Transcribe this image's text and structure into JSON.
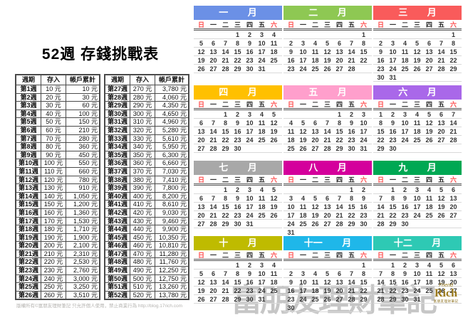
{
  "title": "52週 存錢挑戰表",
  "table": {
    "headers": [
      "週期",
      "存入",
      "帳戶累計"
    ],
    "left_rows": [
      [
        "第1週",
        "10 元",
        "10 元"
      ],
      [
        "第2週",
        "20 元",
        "30 元"
      ],
      [
        "第3週",
        "30 元",
        "60 元"
      ],
      [
        "第4週",
        "40 元",
        "100 元"
      ],
      [
        "第5週",
        "50 元",
        "150 元"
      ],
      [
        "第6週",
        "60 元",
        "210 元"
      ],
      [
        "第7週",
        "70 元",
        "280 元"
      ],
      [
        "第8週",
        "80 元",
        "360 元"
      ],
      [
        "第9週",
        "90 元",
        "450 元"
      ],
      [
        "第10週",
        "100 元",
        "550 元"
      ],
      [
        "第11週",
        "110 元",
        "660 元"
      ],
      [
        "第12週",
        "120 元",
        "780 元"
      ],
      [
        "第13週",
        "130 元",
        "910 元"
      ],
      [
        "第14週",
        "140 元",
        "1,050 元"
      ],
      [
        "第15週",
        "150 元",
        "1,200 元"
      ],
      [
        "第16週",
        "160 元",
        "1,360 元"
      ],
      [
        "第17週",
        "170 元",
        "1,530 元"
      ],
      [
        "第18週",
        "180 元",
        "1,710 元"
      ],
      [
        "第19週",
        "190 元",
        "1,900 元"
      ],
      [
        "第20週",
        "200 元",
        "2,100 元"
      ],
      [
        "第21週",
        "210 元",
        "2,310 元"
      ],
      [
        "第22週",
        "220 元",
        "2,530 元"
      ],
      [
        "第23週",
        "230 元",
        "2,760 元"
      ],
      [
        "第24週",
        "240 元",
        "3,000 元"
      ],
      [
        "第25週",
        "250 元",
        "3,250 元"
      ],
      [
        "第26週",
        "260 元",
        "3,510 元"
      ]
    ],
    "right_rows": [
      [
        "第27週",
        "270 元",
        "3,780 元"
      ],
      [
        "第28週",
        "280 元",
        "4,060 元"
      ],
      [
        "第29週",
        "290 元",
        "4,350 元"
      ],
      [
        "第30週",
        "300 元",
        "4,650 元"
      ],
      [
        "第31週",
        "310 元",
        "4,960 元"
      ],
      [
        "第32週",
        "320 元",
        "5,280 元"
      ],
      [
        "第33週",
        "330 元",
        "5,610 元"
      ],
      [
        "第34週",
        "340 元",
        "5,950 元"
      ],
      [
        "第35週",
        "350 元",
        "6,300 元"
      ],
      [
        "第36週",
        "360 元",
        "6,660 元"
      ],
      [
        "第37週",
        "370 元",
        "7,030 元"
      ],
      [
        "第38週",
        "380 元",
        "7,410 元"
      ],
      [
        "第39週",
        "390 元",
        "7,800 元"
      ],
      [
        "第40週",
        "400 元",
        "8,200 元"
      ],
      [
        "第41週",
        "410 元",
        "8,610 元"
      ],
      [
        "第42週",
        "420 元",
        "9,030 元"
      ],
      [
        "第43週",
        "430 元",
        "9,460 元"
      ],
      [
        "第44週",
        "440 元",
        "9,900 元"
      ],
      [
        "第45週",
        "450 元",
        "10,350 元"
      ],
      [
        "第46週",
        "460 元",
        "10,810 元"
      ],
      [
        "第47週",
        "470 元",
        "11,280 元"
      ],
      [
        "第48週",
        "480 元",
        "11,760 元"
      ],
      [
        "第49週",
        "490 元",
        "12,250 元"
      ],
      [
        "第50週",
        "500 元",
        "12,750 元"
      ],
      [
        "第51週",
        "510 元",
        "13,260 元"
      ],
      [
        "第52週",
        "520 元",
        "13,780 元"
      ]
    ]
  },
  "footer": "版權所有©富朋友理財筆記 只允許個人使用，禁止商業行為 http://blog.17rich.com",
  "watermark": "富朋友理財筆記",
  "logo": {
    "friend": "Friend",
    "rich": "Rich",
    "sub": "富朋友理財筆記"
  },
  "calendar": {
    "weekdays": [
      "日",
      "一",
      "二",
      "三",
      "四",
      "五",
      "六"
    ],
    "weekend_color": "#FF4C4C",
    "months": [
      {
        "label": "一 月",
        "color": "#6B90E6",
        "weeks": [
          [
            "",
            "",
            "",
            "1",
            "2",
            "3",
            "4"
          ],
          [
            "5",
            "6",
            "7",
            "8",
            "9",
            "10",
            "11"
          ],
          [
            "12",
            "13",
            "14",
            "15",
            "16",
            "17",
            "18"
          ],
          [
            "19",
            "20",
            "21",
            "22",
            "23",
            "24",
            "25"
          ],
          [
            "26",
            "27",
            "28",
            "29",
            "30",
            "31",
            ""
          ]
        ]
      },
      {
        "label": "二 月",
        "color": "#8EC853",
        "weeks": [
          [
            "",
            "",
            "",
            "",
            "",
            "",
            "1"
          ],
          [
            "2",
            "3",
            "4",
            "5",
            "6",
            "7",
            "8"
          ],
          [
            "9",
            "10",
            "11",
            "12",
            "13",
            "14",
            "15"
          ],
          [
            "16",
            "17",
            "18",
            "19",
            "20",
            "21",
            "22"
          ],
          [
            "23",
            "24",
            "25",
            "26",
            "27",
            "28",
            ""
          ]
        ]
      },
      {
        "label": "三 月",
        "color": "#F95B5B",
        "weeks": [
          [
            "",
            "",
            "",
            "",
            "",
            "",
            "1"
          ],
          [
            "2",
            "3",
            "4",
            "5",
            "6",
            "7",
            "8"
          ],
          [
            "9",
            "10",
            "11",
            "12",
            "13",
            "14",
            "15"
          ],
          [
            "16",
            "17",
            "18",
            "19",
            "20",
            "21",
            "22"
          ],
          [
            "23",
            "24",
            "25",
            "26",
            "27",
            "28",
            "29"
          ],
          [
            "30",
            "31",
            "",
            "",
            "",
            "",
            ""
          ]
        ]
      },
      {
        "label": "四 月",
        "color": "#FFC000",
        "weeks": [
          [
            "",
            "",
            "1",
            "2",
            "3",
            "4",
            "5"
          ],
          [
            "6",
            "7",
            "8",
            "9",
            "10",
            "11",
            "12"
          ],
          [
            "13",
            "14",
            "15",
            "16",
            "17",
            "18",
            "19"
          ],
          [
            "20",
            "21",
            "22",
            "23",
            "24",
            "25",
            "26"
          ],
          [
            "27",
            "28",
            "29",
            "30",
            "",
            "",
            ""
          ]
        ]
      },
      {
        "label": "五 月",
        "color": "#FF9FCC",
        "weeks": [
          [
            "",
            "",
            "",
            "",
            "1",
            "2",
            "3"
          ],
          [
            "4",
            "5",
            "6",
            "7",
            "8",
            "9",
            "10"
          ],
          [
            "11",
            "12",
            "13",
            "14",
            "15",
            "16",
            "17"
          ],
          [
            "18",
            "19",
            "20",
            "21",
            "22",
            "23",
            "24"
          ],
          [
            "25",
            "26",
            "27",
            "28",
            "29",
            "30",
            "31"
          ]
        ]
      },
      {
        "label": "六 月",
        "color": "#A968E9",
        "weeks": [
          [
            "1",
            "2",
            "3",
            "4",
            "5",
            "6",
            "7"
          ],
          [
            "8",
            "9",
            "10",
            "11",
            "12",
            "13",
            "14"
          ],
          [
            "15",
            "16",
            "17",
            "18",
            "19",
            "20",
            "21"
          ],
          [
            "22",
            "23",
            "24",
            "25",
            "26",
            "27",
            "28"
          ],
          [
            "29",
            "30",
            "",
            "",
            "",
            "",
            ""
          ]
        ]
      },
      {
        "label": "七 月",
        "color": "#A8A8A8",
        "weeks": [
          [
            "",
            "",
            "1",
            "2",
            "3",
            "4",
            "5"
          ],
          [
            "6",
            "7",
            "8",
            "9",
            "10",
            "11",
            "12"
          ],
          [
            "13",
            "14",
            "15",
            "16",
            "17",
            "18",
            "19"
          ],
          [
            "20",
            "21",
            "22",
            "23",
            "24",
            "25",
            "26"
          ],
          [
            "27",
            "28",
            "29",
            "30",
            "31",
            "",
            ""
          ]
        ]
      },
      {
        "label": "八 月",
        "color": "#D4009C",
        "weeks": [
          [
            "",
            "",
            "",
            "",
            "",
            "1",
            "2"
          ],
          [
            "3",
            "4",
            "5",
            "6",
            "7",
            "8",
            "9"
          ],
          [
            "10",
            "11",
            "12",
            "13",
            "14",
            "15",
            "16"
          ],
          [
            "17",
            "18",
            "19",
            "20",
            "21",
            "22",
            "23"
          ],
          [
            "24",
            "25",
            "26",
            "27",
            "28",
            "29",
            "30"
          ],
          [
            "31",
            "",
            "",
            "",
            "",
            "",
            ""
          ]
        ]
      },
      {
        "label": "九 月",
        "color": "#00A853",
        "weeks": [
          [
            "",
            "1",
            "2",
            "3",
            "4",
            "5",
            "6"
          ],
          [
            "7",
            "8",
            "9",
            "10",
            "11",
            "12",
            "13"
          ],
          [
            "14",
            "15",
            "16",
            "17",
            "18",
            "19",
            "20"
          ],
          [
            "21",
            "22",
            "23",
            "24",
            "25",
            "26",
            "27"
          ],
          [
            "28",
            "29",
            "30",
            "",
            "",
            "",
            ""
          ]
        ]
      },
      {
        "label": "十 月",
        "color": "#BFBB00",
        "weeks": [
          [
            "",
            "",
            "",
            "1",
            "2",
            "3",
            "4"
          ],
          [
            "5",
            "6",
            "7",
            "8",
            "9",
            "10",
            "11"
          ],
          [
            "12",
            "13",
            "14",
            "15",
            "16",
            "17",
            "18"
          ],
          [
            "19",
            "20",
            "21",
            "22",
            "23",
            "24",
            "25"
          ],
          [
            "26",
            "27",
            "28",
            "29",
            "30",
            "31",
            ""
          ]
        ]
      },
      {
        "label": "十一 月",
        "color": "#1FB7E9",
        "weeks": [
          [
            "",
            "",
            "",
            "",
            "",
            "",
            "1"
          ],
          [
            "2",
            "3",
            "4",
            "5",
            "6",
            "7",
            "8"
          ],
          [
            "9",
            "10",
            "11",
            "12",
            "13",
            "14",
            "15"
          ],
          [
            "16",
            "17",
            "18",
            "19",
            "20",
            "21",
            "22"
          ],
          [
            "23",
            "24",
            "25",
            "26",
            "27",
            "28",
            "29"
          ],
          [
            "30",
            "",
            "",
            "",
            "",
            "",
            ""
          ]
        ]
      },
      {
        "label": "十二 月",
        "color": "#2EC9B4",
        "weeks": [
          [
            "",
            "1",
            "2",
            "3",
            "4",
            "5",
            "6"
          ],
          [
            "7",
            "8",
            "9",
            "10",
            "11",
            "12",
            "13"
          ],
          [
            "14",
            "15",
            "16",
            "17",
            "18",
            "19",
            "20"
          ],
          [
            "21",
            "22",
            "23",
            "24",
            "25",
            "26",
            "27"
          ],
          [
            "28",
            "29",
            "30",
            "31",
            "",
            "",
            ""
          ]
        ]
      }
    ]
  }
}
